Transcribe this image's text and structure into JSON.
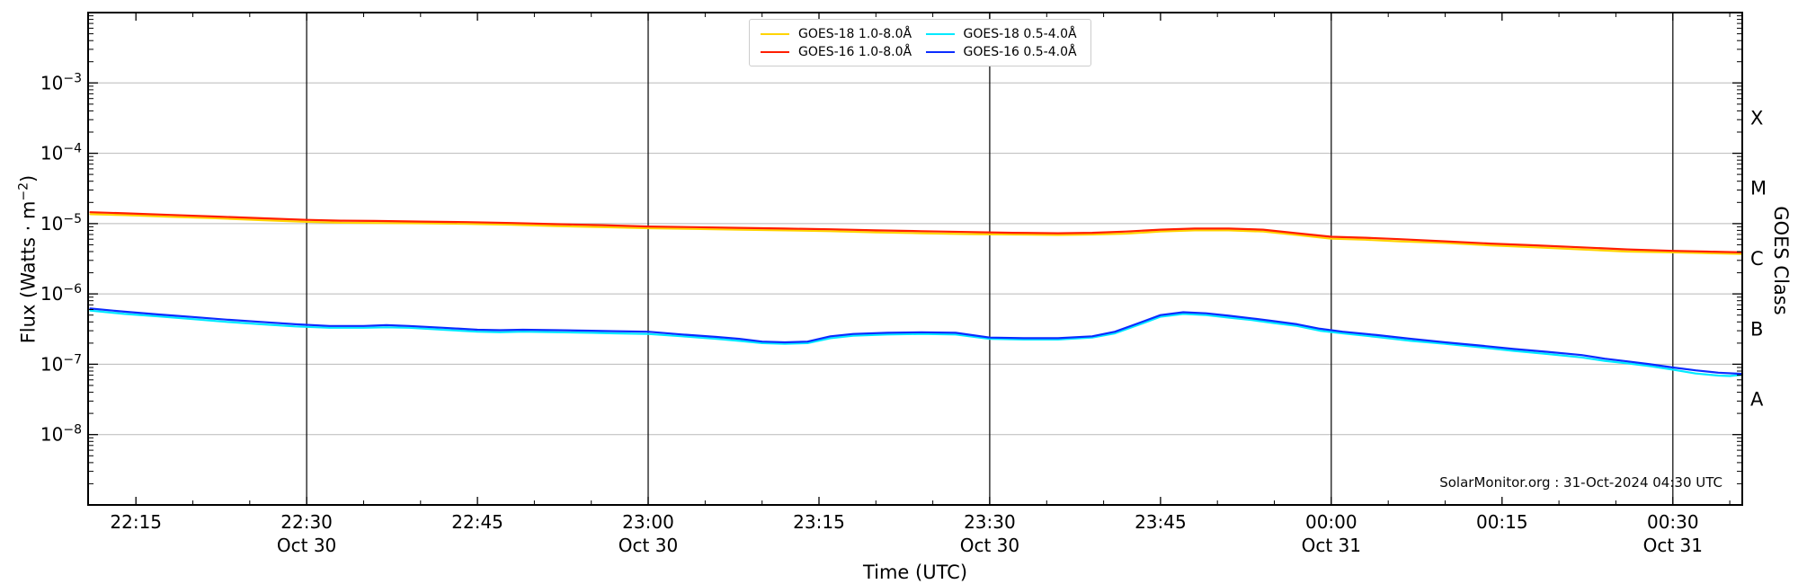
{
  "chart_data": {
    "type": "line",
    "title": "",
    "xlabel": "Time (UTC)",
    "ylabel": {
      "prefix": "Flux (Watts · m",
      "sup": "−2",
      "suffix": ")"
    },
    "ylabel_right": "GOES Class",
    "watermark": "SolarMonitor.org : 31-Oct-2024 04:30 UTC",
    "x_unit": "minutes since 22:00 UTC 30-Oct-2024",
    "xlim": [
      10.8,
      156.1
    ],
    "ylim_exp": [
      -9,
      -2
    ],
    "grid": "horizontal decades light gray; vertical dark lines each 30 min",
    "legend_position": "top-center",
    "y_ticks": [
      {
        "label_base": "10",
        "label_exp": "−3",
        "exp": -3
      },
      {
        "label_base": "10",
        "label_exp": "−4",
        "exp": -4
      },
      {
        "label_base": "10",
        "label_exp": "−5",
        "exp": -5
      },
      {
        "label_base": "10",
        "label_exp": "−6",
        "exp": -6
      },
      {
        "label_base": "10",
        "label_exp": "−7",
        "exp": -7
      },
      {
        "label_base": "10",
        "label_exp": "−8",
        "exp": -8
      }
    ],
    "y_gridline_exps": [
      -3,
      -4,
      -5,
      -6,
      -7,
      -8
    ],
    "goes_classes": [
      {
        "label": "X",
        "exp_center": -3.5
      },
      {
        "label": "M",
        "exp_center": -4.5
      },
      {
        "label": "C",
        "exp_center": -5.5
      },
      {
        "label": "B",
        "exp_center": -6.5
      },
      {
        "label": "A",
        "exp_center": -7.5
      }
    ],
    "x_ticks": [
      {
        "t": 15,
        "label": "22:15"
      },
      {
        "t": 30,
        "label": "22:30",
        "date": "Oct 30"
      },
      {
        "t": 45,
        "label": "22:45"
      },
      {
        "t": 60,
        "label": "23:00",
        "date": "Oct 30"
      },
      {
        "t": 75,
        "label": "23:15"
      },
      {
        "t": 90,
        "label": "23:30",
        "date": "Oct 30"
      },
      {
        "t": 105,
        "label": "23:45"
      },
      {
        "t": 120,
        "label": "00:00",
        "date": "Oct 31"
      },
      {
        "t": 135,
        "label": "00:15"
      },
      {
        "t": 150,
        "label": "00:30",
        "date": "Oct 31"
      }
    ],
    "vline_ts": [
      30,
      60,
      90,
      120,
      150
    ],
    "series": [
      {
        "name": "GOES-18 1.0-8.0Å",
        "color": "#ffd400",
        "points": [
          [
            11,
            1.36e-05
          ],
          [
            14,
            1.32e-05
          ],
          [
            18,
            1.25e-05
          ],
          [
            22,
            1.19e-05
          ],
          [
            26,
            1.12e-05
          ],
          [
            30,
            1.06e-05
          ],
          [
            33,
            1.03e-05
          ],
          [
            36,
            1.02e-05
          ],
          [
            40,
            1.01e-05
          ],
          [
            44,
            9.9e-06
          ],
          [
            48,
            9.6e-06
          ],
          [
            52,
            9.2e-06
          ],
          [
            56,
            8.9e-06
          ],
          [
            60,
            8.6e-06
          ],
          [
            64,
            8.4e-06
          ],
          [
            68,
            8.2e-06
          ],
          [
            72,
            8e-06
          ],
          [
            76,
            7.8e-06
          ],
          [
            80,
            7.5e-06
          ],
          [
            84,
            7.3e-06
          ],
          [
            88,
            7.1e-06
          ],
          [
            92,
            7e-06
          ],
          [
            96,
            6.9e-06
          ],
          [
            99,
            7e-06
          ],
          [
            102,
            7.2e-06
          ],
          [
            105,
            7.7e-06
          ],
          [
            108,
            8e-06
          ],
          [
            111,
            8e-06
          ],
          [
            114,
            7.7e-06
          ],
          [
            117,
            6.9e-06
          ],
          [
            120,
            6.1e-06
          ],
          [
            123,
            5.9e-06
          ],
          [
            126,
            5.6e-06
          ],
          [
            130,
            5.3e-06
          ],
          [
            134,
            4.9e-06
          ],
          [
            138,
            4.6e-06
          ],
          [
            142,
            4.3e-06
          ],
          [
            146,
            4e-06
          ],
          [
            150,
            3.9e-06
          ],
          [
            153,
            3.8e-06
          ],
          [
            156.1,
            3.7e-06
          ]
        ]
      },
      {
        "name": "GOES-16 1.0-8.0Å",
        "color": "#ff1e00",
        "points": [
          [
            11,
            1.45e-05
          ],
          [
            14,
            1.4e-05
          ],
          [
            18,
            1.33e-05
          ],
          [
            22,
            1.26e-05
          ],
          [
            26,
            1.19e-05
          ],
          [
            30,
            1.13e-05
          ],
          [
            33,
            1.1e-05
          ],
          [
            36,
            1.09e-05
          ],
          [
            40,
            1.07e-05
          ],
          [
            44,
            1.05e-05
          ],
          [
            48,
            1.02e-05
          ],
          [
            52,
            9.8e-06
          ],
          [
            56,
            9.5e-06
          ],
          [
            60,
            9.1e-06
          ],
          [
            64,
            8.9e-06
          ],
          [
            68,
            8.7e-06
          ],
          [
            72,
            8.5e-06
          ],
          [
            76,
            8.3e-06
          ],
          [
            80,
            8e-06
          ],
          [
            84,
            7.8e-06
          ],
          [
            88,
            7.6e-06
          ],
          [
            92,
            7.4e-06
          ],
          [
            96,
            7.3e-06
          ],
          [
            99,
            7.4e-06
          ],
          [
            102,
            7.7e-06
          ],
          [
            105,
            8.2e-06
          ],
          [
            108,
            8.5e-06
          ],
          [
            111,
            8.5e-06
          ],
          [
            114,
            8.2e-06
          ],
          [
            117,
            7.3e-06
          ],
          [
            120,
            6.5e-06
          ],
          [
            123,
            6.3e-06
          ],
          [
            126,
            6e-06
          ],
          [
            130,
            5.6e-06
          ],
          [
            134,
            5.2e-06
          ],
          [
            138,
            4.9e-06
          ],
          [
            142,
            4.6e-06
          ],
          [
            146,
            4.3e-06
          ],
          [
            150,
            4.1e-06
          ],
          [
            153,
            4e-06
          ],
          [
            156.1,
            3.9e-06
          ]
        ]
      },
      {
        "name": "GOES-18 0.5-4.0Å",
        "color": "#00eaff",
        "points": [
          [
            11,
            5.8e-07
          ],
          [
            14,
            5.2e-07
          ],
          [
            17,
            4.8e-07
          ],
          [
            20,
            4.4e-07
          ],
          [
            23,
            4e-07
          ],
          [
            26,
            3.7e-07
          ],
          [
            29,
            3.45e-07
          ],
          [
            32,
            3.3e-07
          ],
          [
            35,
            3.3e-07
          ],
          [
            37,
            3.35e-07
          ],
          [
            39,
            3.3e-07
          ],
          [
            42,
            3.1e-07
          ],
          [
            45,
            2.9e-07
          ],
          [
            47,
            2.85e-07
          ],
          [
            49,
            2.9e-07
          ],
          [
            52,
            2.85e-07
          ],
          [
            55,
            2.8e-07
          ],
          [
            57,
            2.75e-07
          ],
          [
            60,
            2.7e-07
          ],
          [
            63,
            2.5e-07
          ],
          [
            66,
            2.3e-07
          ],
          [
            68,
            2.15e-07
          ],
          [
            70,
            2e-07
          ],
          [
            72,
            1.95e-07
          ],
          [
            74,
            2e-07
          ],
          [
            76,
            2.35e-07
          ],
          [
            78,
            2.55e-07
          ],
          [
            81,
            2.65e-07
          ],
          [
            84,
            2.7e-07
          ],
          [
            87,
            2.65e-07
          ],
          [
            90,
            2.3e-07
          ],
          [
            93,
            2.25e-07
          ],
          [
            96,
            2.25e-07
          ],
          [
            99,
            2.4e-07
          ],
          [
            101,
            2.75e-07
          ],
          [
            103,
            3.6e-07
          ],
          [
            105,
            4.75e-07
          ],
          [
            107,
            5.2e-07
          ],
          [
            109,
            5e-07
          ],
          [
            111,
            4.6e-07
          ],
          [
            113,
            4.25e-07
          ],
          [
            115,
            3.85e-07
          ],
          [
            117,
            3.5e-07
          ],
          [
            119,
            3e-07
          ],
          [
            121,
            2.75e-07
          ],
          [
            124,
            2.45e-07
          ],
          [
            127,
            2.15e-07
          ],
          [
            130,
            1.95e-07
          ],
          [
            133,
            1.75e-07
          ],
          [
            136,
            1.55e-07
          ],
          [
            139,
            1.4e-07
          ],
          [
            142,
            1.25e-07
          ],
          [
            144,
            1.12e-07
          ],
          [
            146,
            1.03e-07
          ],
          [
            148,
            9.4e-08
          ],
          [
            150,
            8.4e-08
          ],
          [
            152,
            7.4e-08
          ],
          [
            154,
            6.9e-08
          ],
          [
            155,
            6.8e-08
          ],
          [
            156.1,
            7.1e-08
          ]
        ]
      },
      {
        "name": "GOES-16 0.5-4.0Å",
        "color": "#0b2cff",
        "points": [
          [
            11,
            6.2e-07
          ],
          [
            14,
            5.6e-07
          ],
          [
            17,
            5.1e-07
          ],
          [
            20,
            4.7e-07
          ],
          [
            23,
            4.3e-07
          ],
          [
            26,
            4e-07
          ],
          [
            29,
            3.7e-07
          ],
          [
            32,
            3.5e-07
          ],
          [
            35,
            3.5e-07
          ],
          [
            37,
            3.6e-07
          ],
          [
            39,
            3.5e-07
          ],
          [
            42,
            3.3e-07
          ],
          [
            45,
            3.1e-07
          ],
          [
            47,
            3.05e-07
          ],
          [
            49,
            3.1e-07
          ],
          [
            52,
            3.05e-07
          ],
          [
            55,
            3e-07
          ],
          [
            57,
            2.95e-07
          ],
          [
            60,
            2.9e-07
          ],
          [
            63,
            2.65e-07
          ],
          [
            66,
            2.45e-07
          ],
          [
            68,
            2.3e-07
          ],
          [
            70,
            2.1e-07
          ],
          [
            72,
            2.05e-07
          ],
          [
            74,
            2.1e-07
          ],
          [
            76,
            2.5e-07
          ],
          [
            78,
            2.7e-07
          ],
          [
            81,
            2.8e-07
          ],
          [
            84,
            2.85e-07
          ],
          [
            87,
            2.8e-07
          ],
          [
            90,
            2.4e-07
          ],
          [
            93,
            2.35e-07
          ],
          [
            96,
            2.35e-07
          ],
          [
            99,
            2.5e-07
          ],
          [
            101,
            2.9e-07
          ],
          [
            103,
            3.8e-07
          ],
          [
            105,
            5e-07
          ],
          [
            107,
            5.5e-07
          ],
          [
            109,
            5.3e-07
          ],
          [
            111,
            4.9e-07
          ],
          [
            113,
            4.5e-07
          ],
          [
            115,
            4.1e-07
          ],
          [
            117,
            3.7e-07
          ],
          [
            119,
            3.2e-07
          ],
          [
            121,
            2.9e-07
          ],
          [
            124,
            2.6e-07
          ],
          [
            127,
            2.3e-07
          ],
          [
            130,
            2.05e-07
          ],
          [
            133,
            1.85e-07
          ],
          [
            136,
            1.65e-07
          ],
          [
            139,
            1.5e-07
          ],
          [
            142,
            1.35e-07
          ],
          [
            144,
            1.2e-07
          ],
          [
            146,
            1.1e-07
          ],
          [
            148,
            1e-07
          ],
          [
            150,
            9e-08
          ],
          [
            152,
            8.2e-08
          ],
          [
            154,
            7.6e-08
          ],
          [
            156.1,
            7.3e-08
          ]
        ]
      }
    ]
  }
}
